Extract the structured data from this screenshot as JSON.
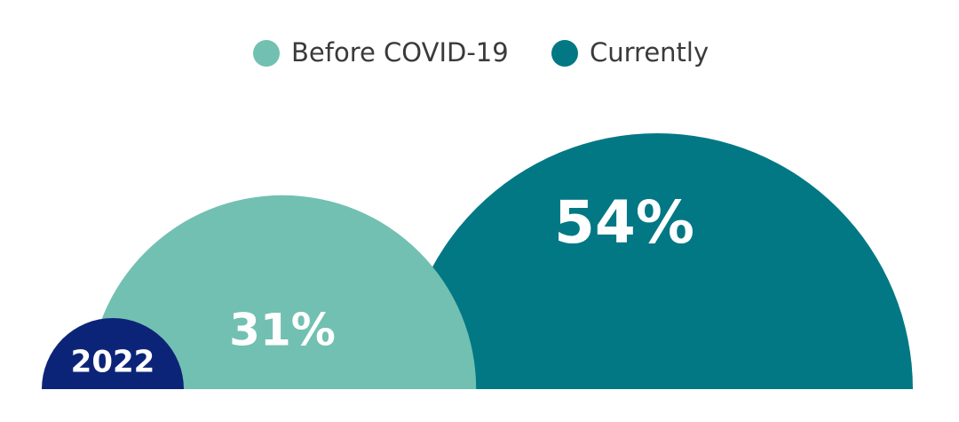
{
  "chart_data": {
    "type": "semicircle",
    "label": "2022",
    "label_color": "#0c2478",
    "series": [
      {
        "name": "Before COVID-19",
        "color": "#72c0b1",
        "values": [
          31
        ],
        "value_labels": [
          "31%"
        ]
      },
      {
        "name": "Currently",
        "color": "#037885",
        "values": [
          54
        ],
        "value_labels": [
          "54%"
        ]
      }
    ]
  }
}
